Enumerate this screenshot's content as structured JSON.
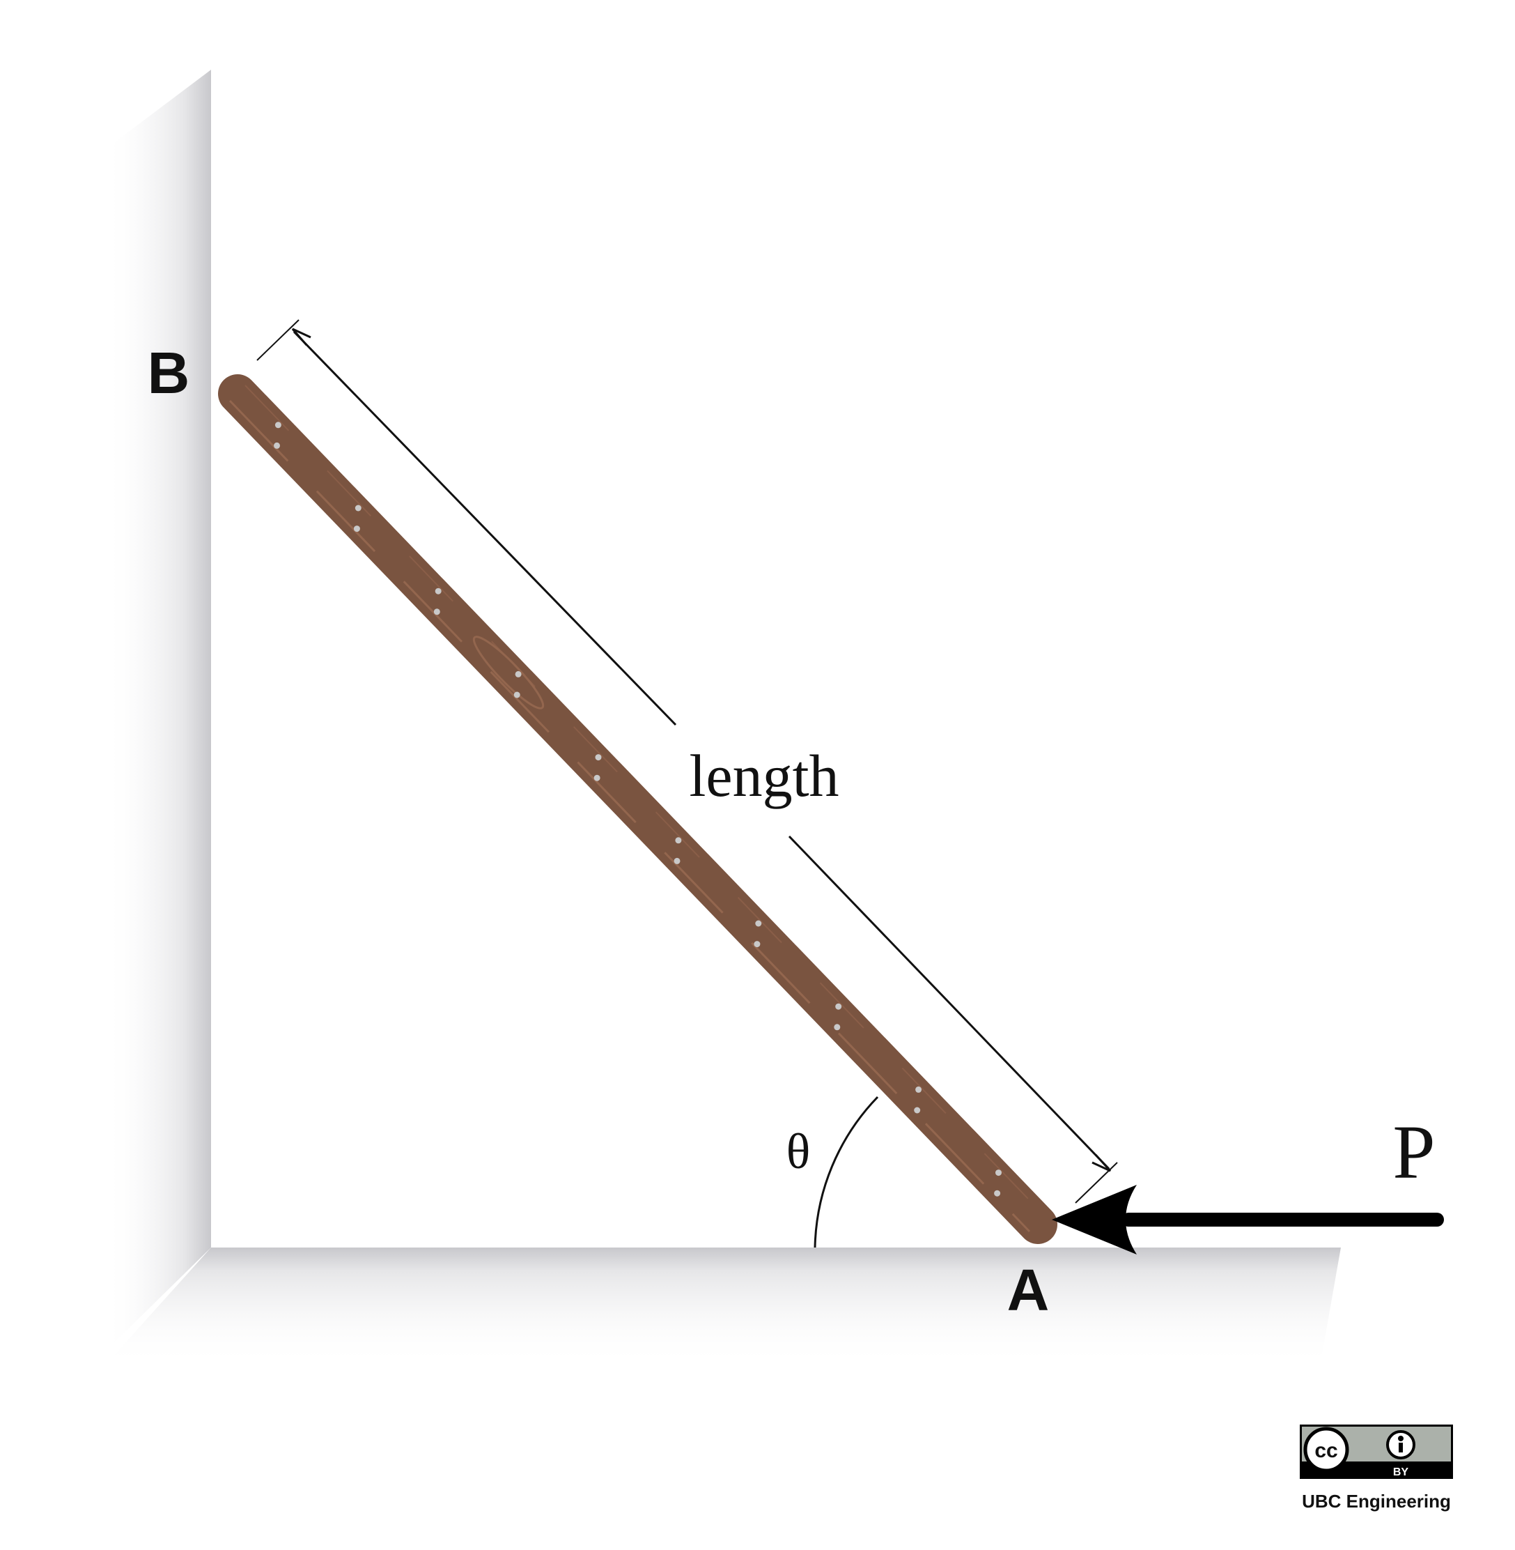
{
  "labels": {
    "point_b": "B",
    "point_a": "A",
    "length": "length",
    "angle": "θ",
    "force": "P"
  },
  "license": {
    "cc_mark": "cc",
    "by_mark": "BY",
    "credit": "UBC Engineering"
  },
  "colors": {
    "rod": "#7a5440",
    "rod_grain": "#93664e",
    "rod_nail": "#c9c9c9",
    "wall_shadow": "#dcdcdc",
    "ink": "#111111"
  }
}
